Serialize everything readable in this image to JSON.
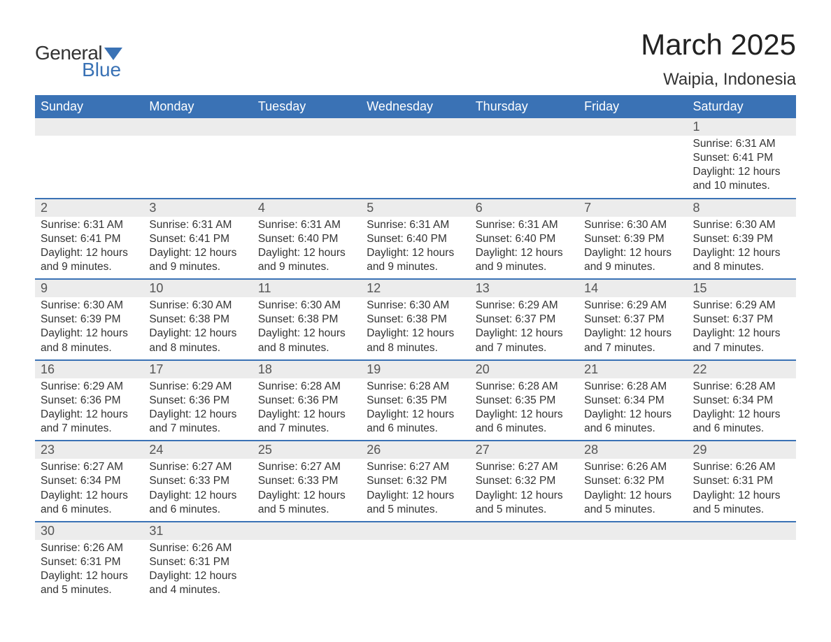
{
  "logo": {
    "text1": "General",
    "text2": "Blue",
    "flag_color": "#3a72b5"
  },
  "title": "March 2025",
  "location": "Waipia, Indonesia",
  "colors": {
    "header_bg": "#3a72b5",
    "header_text": "#ffffff",
    "daynum_bg": "#ececec",
    "row_divider": "#3a72b5",
    "body_text": "#333333",
    "bg": "#ffffff"
  },
  "fonts": {
    "title_size_pt": 42,
    "location_size_pt": 24,
    "header_size_pt": 18,
    "daynum_size_pt": 18,
    "body_size_pt": 15.5,
    "family": "Arial"
  },
  "weekdays": [
    "Sunday",
    "Monday",
    "Tuesday",
    "Wednesday",
    "Thursday",
    "Friday",
    "Saturday"
  ],
  "weeks": [
    [
      null,
      null,
      null,
      null,
      null,
      null,
      {
        "n": "1",
        "sunrise": "Sunrise: 6:31 AM",
        "sunset": "Sunset: 6:41 PM",
        "day1": "Daylight: 12 hours",
        "day2": "and 10 minutes."
      }
    ],
    [
      {
        "n": "2",
        "sunrise": "Sunrise: 6:31 AM",
        "sunset": "Sunset: 6:41 PM",
        "day1": "Daylight: 12 hours",
        "day2": "and 9 minutes."
      },
      {
        "n": "3",
        "sunrise": "Sunrise: 6:31 AM",
        "sunset": "Sunset: 6:41 PM",
        "day1": "Daylight: 12 hours",
        "day2": "and 9 minutes."
      },
      {
        "n": "4",
        "sunrise": "Sunrise: 6:31 AM",
        "sunset": "Sunset: 6:40 PM",
        "day1": "Daylight: 12 hours",
        "day2": "and 9 minutes."
      },
      {
        "n": "5",
        "sunrise": "Sunrise: 6:31 AM",
        "sunset": "Sunset: 6:40 PM",
        "day1": "Daylight: 12 hours",
        "day2": "and 9 minutes."
      },
      {
        "n": "6",
        "sunrise": "Sunrise: 6:31 AM",
        "sunset": "Sunset: 6:40 PM",
        "day1": "Daylight: 12 hours",
        "day2": "and 9 minutes."
      },
      {
        "n": "7",
        "sunrise": "Sunrise: 6:30 AM",
        "sunset": "Sunset: 6:39 PM",
        "day1": "Daylight: 12 hours",
        "day2": "and 9 minutes."
      },
      {
        "n": "8",
        "sunrise": "Sunrise: 6:30 AM",
        "sunset": "Sunset: 6:39 PM",
        "day1": "Daylight: 12 hours",
        "day2": "and 8 minutes."
      }
    ],
    [
      {
        "n": "9",
        "sunrise": "Sunrise: 6:30 AM",
        "sunset": "Sunset: 6:39 PM",
        "day1": "Daylight: 12 hours",
        "day2": "and 8 minutes."
      },
      {
        "n": "10",
        "sunrise": "Sunrise: 6:30 AM",
        "sunset": "Sunset: 6:38 PM",
        "day1": "Daylight: 12 hours",
        "day2": "and 8 minutes."
      },
      {
        "n": "11",
        "sunrise": "Sunrise: 6:30 AM",
        "sunset": "Sunset: 6:38 PM",
        "day1": "Daylight: 12 hours",
        "day2": "and 8 minutes."
      },
      {
        "n": "12",
        "sunrise": "Sunrise: 6:30 AM",
        "sunset": "Sunset: 6:38 PM",
        "day1": "Daylight: 12 hours",
        "day2": "and 8 minutes."
      },
      {
        "n": "13",
        "sunrise": "Sunrise: 6:29 AM",
        "sunset": "Sunset: 6:37 PM",
        "day1": "Daylight: 12 hours",
        "day2": "and 7 minutes."
      },
      {
        "n": "14",
        "sunrise": "Sunrise: 6:29 AM",
        "sunset": "Sunset: 6:37 PM",
        "day1": "Daylight: 12 hours",
        "day2": "and 7 minutes."
      },
      {
        "n": "15",
        "sunrise": "Sunrise: 6:29 AM",
        "sunset": "Sunset: 6:37 PM",
        "day1": "Daylight: 12 hours",
        "day2": "and 7 minutes."
      }
    ],
    [
      {
        "n": "16",
        "sunrise": "Sunrise: 6:29 AM",
        "sunset": "Sunset: 6:36 PM",
        "day1": "Daylight: 12 hours",
        "day2": "and 7 minutes."
      },
      {
        "n": "17",
        "sunrise": "Sunrise: 6:29 AM",
        "sunset": "Sunset: 6:36 PM",
        "day1": "Daylight: 12 hours",
        "day2": "and 7 minutes."
      },
      {
        "n": "18",
        "sunrise": "Sunrise: 6:28 AM",
        "sunset": "Sunset: 6:36 PM",
        "day1": "Daylight: 12 hours",
        "day2": "and 7 minutes."
      },
      {
        "n": "19",
        "sunrise": "Sunrise: 6:28 AM",
        "sunset": "Sunset: 6:35 PM",
        "day1": "Daylight: 12 hours",
        "day2": "and 6 minutes."
      },
      {
        "n": "20",
        "sunrise": "Sunrise: 6:28 AM",
        "sunset": "Sunset: 6:35 PM",
        "day1": "Daylight: 12 hours",
        "day2": "and 6 minutes."
      },
      {
        "n": "21",
        "sunrise": "Sunrise: 6:28 AM",
        "sunset": "Sunset: 6:34 PM",
        "day1": "Daylight: 12 hours",
        "day2": "and 6 minutes."
      },
      {
        "n": "22",
        "sunrise": "Sunrise: 6:28 AM",
        "sunset": "Sunset: 6:34 PM",
        "day1": "Daylight: 12 hours",
        "day2": "and 6 minutes."
      }
    ],
    [
      {
        "n": "23",
        "sunrise": "Sunrise: 6:27 AM",
        "sunset": "Sunset: 6:34 PM",
        "day1": "Daylight: 12 hours",
        "day2": "and 6 minutes."
      },
      {
        "n": "24",
        "sunrise": "Sunrise: 6:27 AM",
        "sunset": "Sunset: 6:33 PM",
        "day1": "Daylight: 12 hours",
        "day2": "and 6 minutes."
      },
      {
        "n": "25",
        "sunrise": "Sunrise: 6:27 AM",
        "sunset": "Sunset: 6:33 PM",
        "day1": "Daylight: 12 hours",
        "day2": "and 5 minutes."
      },
      {
        "n": "26",
        "sunrise": "Sunrise: 6:27 AM",
        "sunset": "Sunset: 6:32 PM",
        "day1": "Daylight: 12 hours",
        "day2": "and 5 minutes."
      },
      {
        "n": "27",
        "sunrise": "Sunrise: 6:27 AM",
        "sunset": "Sunset: 6:32 PM",
        "day1": "Daylight: 12 hours",
        "day2": "and 5 minutes."
      },
      {
        "n": "28",
        "sunrise": "Sunrise: 6:26 AM",
        "sunset": "Sunset: 6:32 PM",
        "day1": "Daylight: 12 hours",
        "day2": "and 5 minutes."
      },
      {
        "n": "29",
        "sunrise": "Sunrise: 6:26 AM",
        "sunset": "Sunset: 6:31 PM",
        "day1": "Daylight: 12 hours",
        "day2": "and 5 minutes."
      }
    ],
    [
      {
        "n": "30",
        "sunrise": "Sunrise: 6:26 AM",
        "sunset": "Sunset: 6:31 PM",
        "day1": "Daylight: 12 hours",
        "day2": "and 5 minutes."
      },
      {
        "n": "31",
        "sunrise": "Sunrise: 6:26 AM",
        "sunset": "Sunset: 6:31 PM",
        "day1": "Daylight: 12 hours",
        "day2": "and 4 minutes."
      },
      null,
      null,
      null,
      null,
      null
    ]
  ]
}
